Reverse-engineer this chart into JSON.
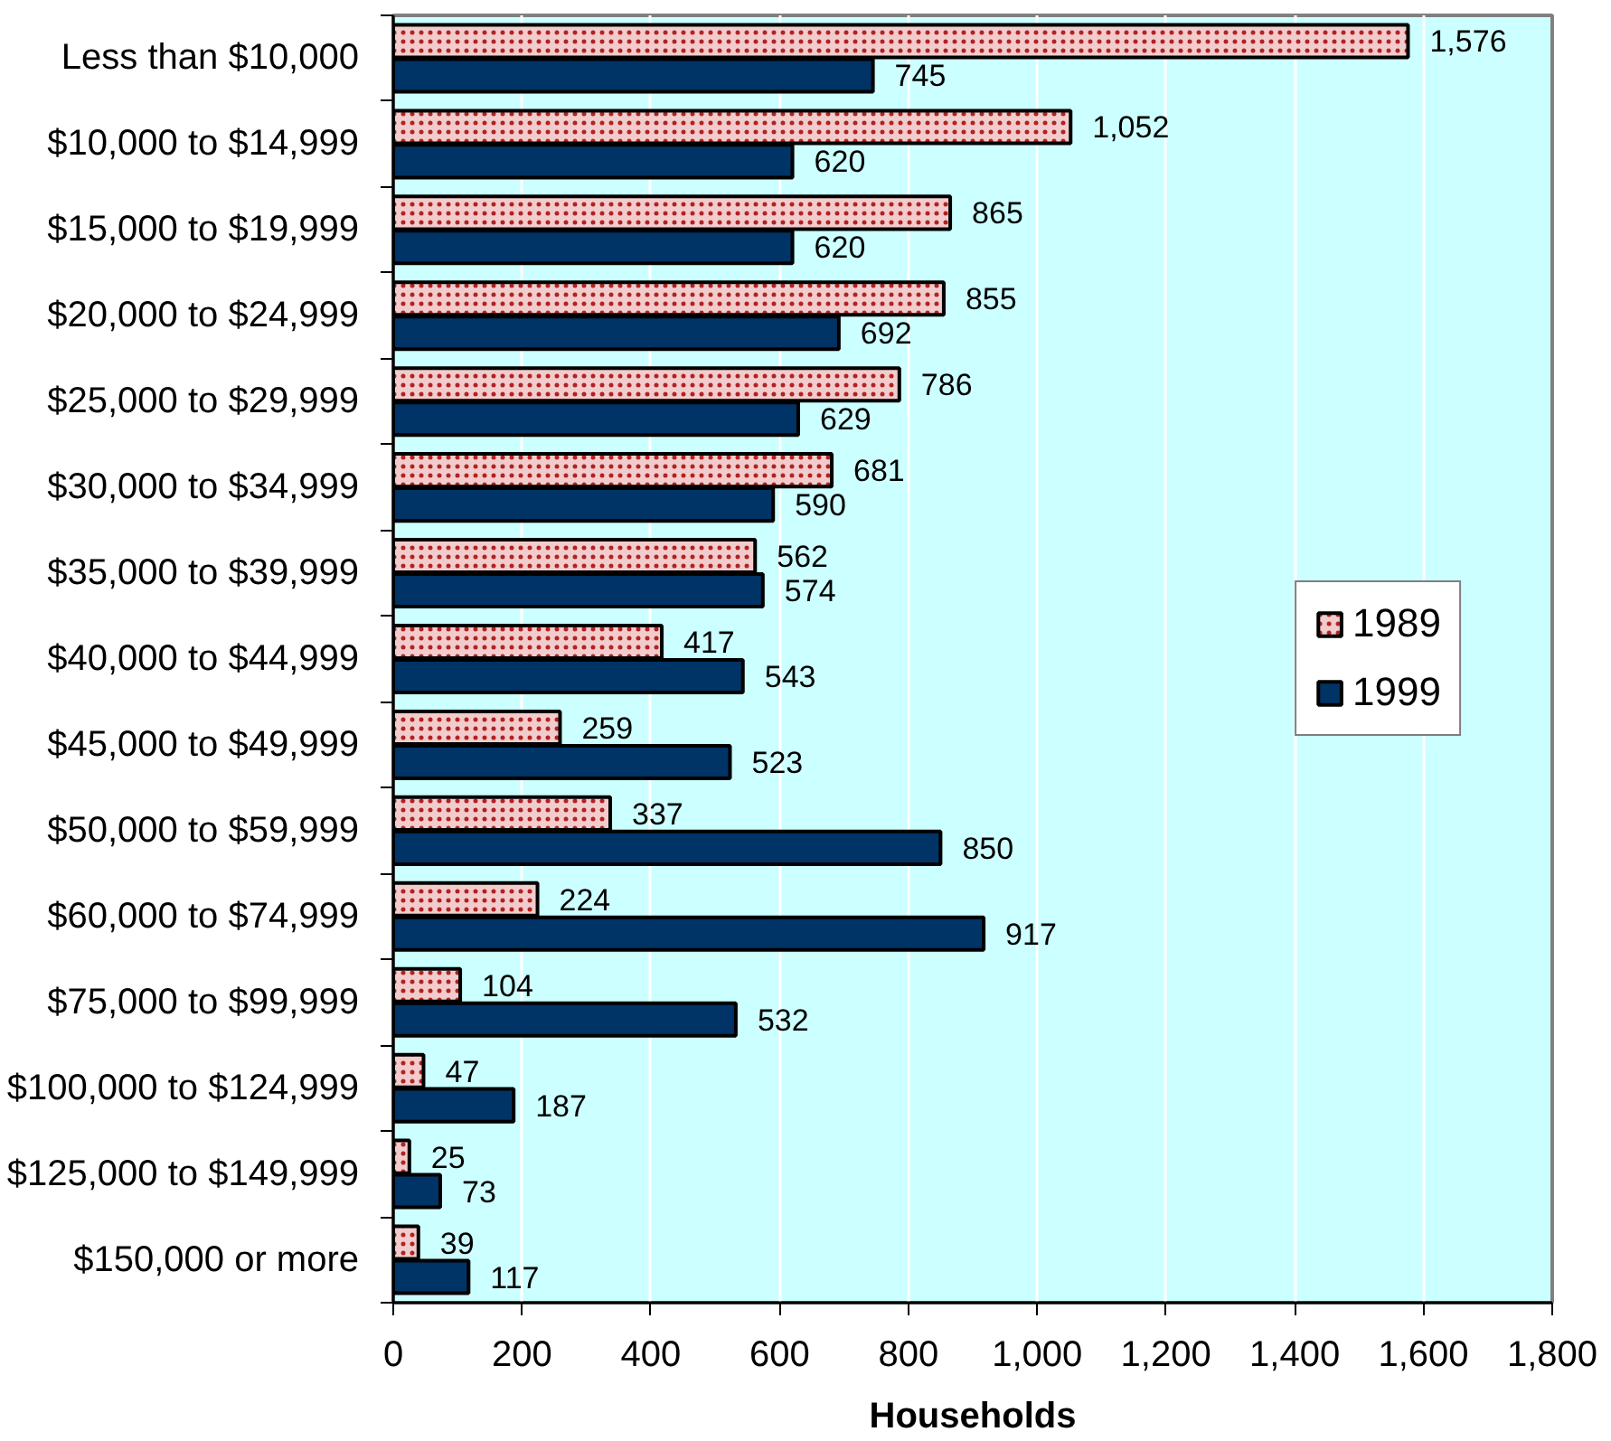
{
  "chart_data": {
    "type": "bar",
    "orientation": "horizontal",
    "xlabel": "Households",
    "categories": [
      "Less than $10,000",
      "$10,000 to $14,999",
      "$15,000 to $19,999",
      "$20,000 to $24,999",
      "$25,000 to $29,999",
      "$30,000 to $34,999",
      "$35,000 to $39,999",
      "$40,000 to $44,999",
      "$45,000 to $49,999",
      "$50,000 to $59,999",
      "$60,000 to $74,999",
      "$75,000 to $99,999",
      "$100,000 to $124,999",
      "$125,000 to $149,999",
      "$150,000 or more"
    ],
    "series": [
      {
        "name": "1989",
        "color": "#f2cccc",
        "values": [
          1576,
          1052,
          865,
          855,
          786,
          681,
          562,
          417,
          259,
          337,
          224,
          104,
          47,
          25,
          39
        ],
        "value_labels": [
          "1,576",
          "1,052",
          "865",
          "855",
          "786",
          "681",
          "562",
          "417",
          "259",
          "337",
          "224",
          "104",
          "47",
          "25",
          "39"
        ]
      },
      {
        "name": "1999",
        "color": "#003366",
        "values": [
          745,
          620,
          620,
          692,
          629,
          590,
          574,
          543,
          523,
          850,
          917,
          532,
          187,
          73,
          117
        ],
        "value_labels": [
          "745",
          "620",
          "620",
          "692",
          "629",
          "590",
          "574",
          "543",
          "523",
          "850",
          "917",
          "532",
          "187",
          "73",
          "117"
        ]
      }
    ],
    "xlim": [
      0,
      1800
    ],
    "xticks": [
      0,
      200,
      400,
      600,
      800,
      {
        "value": 1000,
        "label": "1,000"
      },
      {
        "value": 1200,
        "label": "1,200"
      },
      {
        "value": 1400,
        "label": "1,400"
      },
      {
        "value": 1600,
        "label": "1,600"
      },
      {
        "value": 1800,
        "label": "1,800"
      }
    ],
    "grid": "x",
    "legend": "right"
  }
}
